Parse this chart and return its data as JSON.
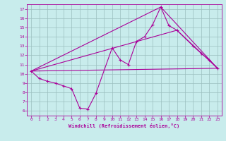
{
  "xlabel": "Windchill (Refroidissement éolien,°C)",
  "xlim": [
    -0.5,
    23.5
  ],
  "ylim": [
    5.5,
    17.5
  ],
  "xticks": [
    0,
    1,
    2,
    3,
    4,
    5,
    6,
    7,
    8,
    9,
    10,
    11,
    12,
    13,
    14,
    15,
    16,
    17,
    18,
    19,
    20,
    21,
    22,
    23
  ],
  "yticks": [
    6,
    7,
    8,
    9,
    10,
    11,
    12,
    13,
    14,
    15,
    16,
    17
  ],
  "bg_color": "#c8ecec",
  "line_color": "#aa0099",
  "grid_color": "#9bbfbf",
  "main_line": {
    "x": [
      0,
      1,
      2,
      3,
      4,
      5,
      6,
      7,
      8,
      10,
      11,
      12,
      13,
      14,
      15,
      16,
      17,
      18,
      20,
      21,
      22,
      23
    ],
    "y": [
      10.3,
      9.5,
      9.2,
      9.0,
      8.7,
      8.4,
      6.3,
      6.2,
      7.9,
      12.8,
      11.5,
      11.0,
      13.5,
      14.0,
      15.3,
      17.2,
      15.2,
      14.7,
      13.0,
      12.2,
      11.5,
      10.6
    ]
  },
  "ref_lines": [
    {
      "x": [
        0,
        23
      ],
      "y": [
        10.3,
        10.6
      ]
    },
    {
      "x": [
        0,
        16,
        23
      ],
      "y": [
        10.3,
        17.2,
        10.6
      ]
    },
    {
      "x": [
        0,
        18,
        23
      ],
      "y": [
        10.3,
        14.7,
        10.6
      ]
    }
  ]
}
